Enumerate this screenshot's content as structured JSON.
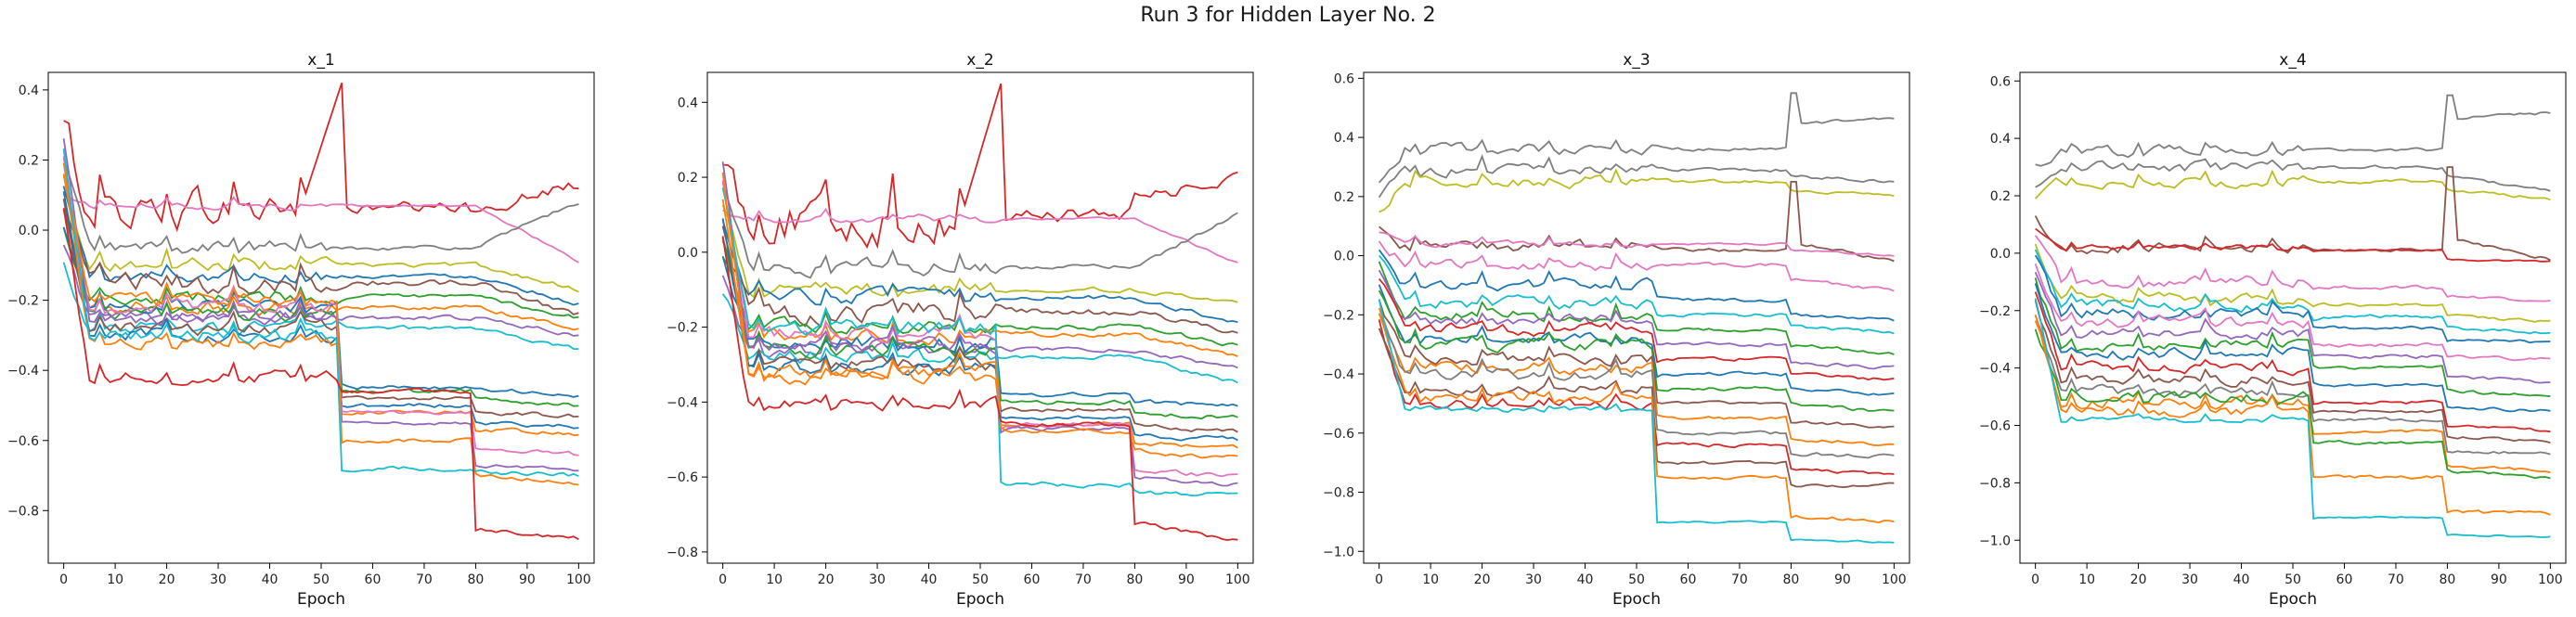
{
  "figure": {
    "title": "Run 3 for Hidden Layer No. 2"
  },
  "chart_data": [
    {
      "type": "line",
      "title": "x_1",
      "xlabel": "Epoch",
      "ylabel": "",
      "xlim": [
        -3,
        103
      ],
      "ylim": [
        -0.95,
        0.45
      ],
      "xticks": [
        0,
        10,
        20,
        30,
        40,
        50,
        60,
        70,
        80,
        90,
        100
      ],
      "yticks": [
        -0.8,
        -0.6,
        -0.4,
        -0.2,
        0.0,
        0.2,
        0.4
      ],
      "ytick_labels": [
        "−0.8",
        "−0.6",
        "−0.4",
        "−0.2",
        "0.0",
        "0.2",
        "0.4"
      ],
      "grid": false,
      "legend": "none",
      "series": [
        {
          "start": 0.3,
          "mid": 0.06,
          "drop54": 0.0,
          "drop80": 0.0,
          "final": 0.13,
          "color": "#d62728",
          "spike54": 0.42,
          "noise": 0.06
        },
        {
          "start": 0.1,
          "mid": 0.07,
          "drop54": 0.0,
          "drop80": 0.0,
          "final": -0.09,
          "color": "#e377c2",
          "noise": 0.01
        },
        {
          "start": 0.2,
          "mid": -0.05,
          "drop54": 0.0,
          "drop80": 0.0,
          "final": 0.08,
          "color": "#7f7f7f",
          "noise": 0.02
        },
        {
          "start": 0.15,
          "mid": -0.1,
          "drop54": 0.0,
          "drop80": 0.0,
          "final": -0.17,
          "color": "#bcbd22",
          "noise": 0.02
        },
        {
          "start": 0.12,
          "mid": -0.13,
          "drop54": 0.0,
          "drop80": 0.0,
          "final": -0.21,
          "color": "#1f77b4",
          "noise": 0.02
        },
        {
          "start": 0.05,
          "mid": -0.15,
          "drop54": 0.0,
          "drop80": 0.0,
          "final": -0.24,
          "color": "#8c564b",
          "noise": 0.03
        },
        {
          "start": 0.0,
          "mid": -0.19,
          "drop54": 0.0,
          "drop80": 0.0,
          "final": -0.25,
          "color": "#2ca02c",
          "noise": 0.02
        },
        {
          "start": 0.05,
          "mid": -0.22,
          "drop54": 0.0,
          "drop80": 0.0,
          "final": -0.28,
          "color": "#ff7f0e",
          "noise": 0.02
        },
        {
          "start": -0.05,
          "mid": -0.25,
          "drop54": 0.0,
          "drop80": 0.0,
          "final": -0.3,
          "color": "#9467bd",
          "noise": 0.02
        },
        {
          "start": -0.1,
          "mid": -0.28,
          "drop54": 0.0,
          "drop80": 0.0,
          "final": -0.34,
          "color": "#17becf",
          "noise": 0.02
        },
        {
          "start": 0.0,
          "mid": -0.22,
          "drop54": -0.45,
          "drop80": -0.45,
          "final": -0.47,
          "color": "#1f77b4",
          "noise": 0.02
        },
        {
          "start": 0.05,
          "mid": -0.24,
          "drop54": -0.46,
          "drop80": -0.48,
          "final": -0.5,
          "color": "#2ca02c",
          "noise": 0.02
        },
        {
          "start": 0.08,
          "mid": -0.28,
          "drop54": -0.48,
          "drop80": -0.52,
          "final": -0.53,
          "color": "#8c564b",
          "noise": 0.02
        },
        {
          "start": 0.1,
          "mid": -0.3,
          "drop54": -0.5,
          "drop80": -0.55,
          "final": -0.56,
          "color": "#1f77b4",
          "noise": 0.02
        },
        {
          "start": 0.15,
          "mid": -0.32,
          "drop54": -0.52,
          "drop80": -0.57,
          "final": -0.58,
          "color": "#ff7f0e",
          "noise": 0.02
        },
        {
          "start": 0.2,
          "mid": -0.22,
          "drop54": -0.52,
          "drop80": -0.62,
          "final": -0.64,
          "color": "#e377c2",
          "noise": 0.02
        },
        {
          "start": 0.25,
          "mid": -0.25,
          "drop54": -0.55,
          "drop80": -0.67,
          "final": -0.68,
          "color": "#9467bd",
          "noise": 0.02
        },
        {
          "start": 0.18,
          "mid": -0.2,
          "drop54": -0.6,
          "drop80": -0.7,
          "final": -0.72,
          "color": "#ff7f0e",
          "noise": 0.02
        },
        {
          "start": 0.22,
          "mid": -0.3,
          "drop54": -0.68,
          "drop80": -0.69,
          "final": -0.7,
          "color": "#17becf",
          "noise": 0.02
        },
        {
          "start": 0.05,
          "mid": -0.42,
          "drop54": -0.46,
          "drop80": -0.85,
          "final": -0.88,
          "color": "#d62728",
          "noise": 0.02
        }
      ]
    },
    {
      "type": "line",
      "title": "x_2",
      "xlabel": "Epoch",
      "ylabel": "",
      "xlim": [
        -3,
        103
      ],
      "ylim": [
        -0.83,
        0.48
      ],
      "xticks": [
        0,
        10,
        20,
        30,
        40,
        50,
        60,
        70,
        80,
        90,
        100
      ],
      "yticks": [
        -0.8,
        -0.6,
        -0.4,
        -0.2,
        0.0,
        0.2,
        0.4
      ],
      "ytick_labels": [
        "−0.8",
        "−0.6",
        "−0.4",
        "−0.2",
        "0.0",
        "0.2",
        "0.4"
      ],
      "grid": false,
      "legend": "none",
      "series": [
        {
          "start": 0.28,
          "mid": 0.08,
          "drop54": 0.1,
          "drop80": 0.15,
          "final": 0.19,
          "color": "#d62728",
          "spike54": 0.45,
          "noise": 0.06
        },
        {
          "start": 0.12,
          "mid": 0.09,
          "drop54": 0.0,
          "drop80": 0.0,
          "final": -0.03,
          "color": "#e377c2",
          "noise": 0.01
        },
        {
          "start": 0.2,
          "mid": -0.04,
          "drop54": 0.0,
          "drop80": 0.0,
          "final": 0.1,
          "color": "#7f7f7f",
          "noise": 0.02
        },
        {
          "start": 0.14,
          "mid": -0.1,
          "drop54": 0.0,
          "drop80": 0.0,
          "final": -0.14,
          "color": "#bcbd22",
          "noise": 0.02
        },
        {
          "start": 0.1,
          "mid": -0.12,
          "drop54": 0.0,
          "drop80": 0.0,
          "final": -0.19,
          "color": "#1f77b4",
          "noise": 0.02
        },
        {
          "start": 0.05,
          "mid": -0.16,
          "drop54": 0.0,
          "drop80": 0.0,
          "final": -0.22,
          "color": "#8c564b",
          "noise": 0.03
        },
        {
          "start": 0.0,
          "mid": -0.2,
          "drop54": 0.0,
          "drop80": 0.0,
          "final": -0.25,
          "color": "#2ca02c",
          "noise": 0.02
        },
        {
          "start": 0.05,
          "mid": -0.22,
          "drop54": 0.0,
          "drop80": 0.0,
          "final": -0.28,
          "color": "#ff7f0e",
          "noise": 0.02
        },
        {
          "start": -0.05,
          "mid": -0.26,
          "drop54": 0.0,
          "drop80": 0.0,
          "final": -0.31,
          "color": "#9467bd",
          "noise": 0.02
        },
        {
          "start": -0.1,
          "mid": -0.28,
          "drop54": 0.0,
          "drop80": 0.0,
          "final": -0.35,
          "color": "#17becf",
          "noise": 0.02
        },
        {
          "start": 0.0,
          "mid": -0.24,
          "drop54": -0.38,
          "drop80": -0.4,
          "final": -0.41,
          "color": "#1f77b4",
          "noise": 0.02
        },
        {
          "start": 0.05,
          "mid": -0.26,
          "drop54": -0.4,
          "drop80": -0.43,
          "final": -0.44,
          "color": "#2ca02c",
          "noise": 0.02
        },
        {
          "start": 0.08,
          "mid": -0.3,
          "drop54": -0.42,
          "drop80": -0.46,
          "final": -0.48,
          "color": "#8c564b",
          "noise": 0.02
        },
        {
          "start": 0.1,
          "mid": -0.31,
          "drop54": -0.44,
          "drop80": -0.49,
          "final": -0.5,
          "color": "#1f77b4",
          "noise": 0.02
        },
        {
          "start": 0.15,
          "mid": -0.33,
          "drop54": -0.46,
          "drop80": -0.51,
          "final": -0.52,
          "color": "#ff7f0e",
          "noise": 0.02
        },
        {
          "start": 0.2,
          "mid": -0.22,
          "drop54": -0.46,
          "drop80": -0.58,
          "final": -0.6,
          "color": "#e377c2",
          "noise": 0.02
        },
        {
          "start": 0.25,
          "mid": -0.25,
          "drop54": -0.47,
          "drop80": -0.6,
          "final": -0.62,
          "color": "#9467bd",
          "noise": 0.02
        },
        {
          "start": 0.18,
          "mid": -0.2,
          "drop54": -0.62,
          "drop80": -0.64,
          "final": -0.65,
          "color": "#17becf",
          "noise": 0.02
        },
        {
          "start": 0.22,
          "mid": -0.32,
          "drop54": -0.48,
          "drop80": -0.53,
          "final": -0.55,
          "color": "#ff7f0e",
          "noise": 0.02
        },
        {
          "start": 0.05,
          "mid": -0.4,
          "drop54": -0.46,
          "drop80": -0.72,
          "final": -0.77,
          "color": "#d62728",
          "noise": 0.02
        }
      ]
    },
    {
      "type": "line",
      "title": "x_3",
      "xlabel": "Epoch",
      "ylabel": "",
      "xlim": [
        -3,
        103
      ],
      "ylim": [
        -1.04,
        0.62
      ],
      "xticks": [
        0,
        10,
        20,
        30,
        40,
        50,
        60,
        70,
        80,
        90,
        100
      ],
      "yticks": [
        -1.0,
        -0.8,
        -0.6,
        -0.4,
        -0.2,
        0.0,
        0.2,
        0.4,
        0.6
      ],
      "ytick_labels": [
        "−1.0",
        "−0.8",
        "−0.6",
        "−0.4",
        "−0.2",
        "0.0",
        "0.2",
        "0.4",
        "0.6"
      ],
      "grid": false,
      "legend": "none",
      "series": [
        {
          "start": 0.25,
          "mid": 0.36,
          "drop54": 0.36,
          "drop80": 0.45,
          "final": 0.46,
          "color": "#7f7f7f",
          "spike80": 0.55,
          "noise": 0.02
        },
        {
          "start": 0.2,
          "mid": 0.29,
          "drop54": 0.29,
          "drop80": 0.27,
          "final": 0.25,
          "color": "#7f7f7f",
          "noise": 0.02
        },
        {
          "start": 0.15,
          "mid": 0.25,
          "drop54": 0.25,
          "drop80": 0.22,
          "final": 0.2,
          "color": "#bcbd22",
          "noise": 0.02
        },
        {
          "start": 0.1,
          "mid": 0.03,
          "drop54": 0.02,
          "drop80": 0.05,
          "final": -0.02,
          "color": "#8c564b",
          "spike80": 0.25,
          "noise": 0.02
        },
        {
          "start": 0.08,
          "mid": 0.04,
          "drop54": 0.04,
          "drop80": 0.02,
          "final": 0.0,
          "color": "#e377c2",
          "noise": 0.01
        },
        {
          "start": 0.05,
          "mid": -0.03,
          "drop54": -0.03,
          "drop80": -0.08,
          "final": -0.12,
          "color": "#e377c2",
          "noise": 0.02
        },
        {
          "start": 0.02,
          "mid": -0.1,
          "drop54": -0.15,
          "drop80": -0.2,
          "final": -0.22,
          "color": "#1f77b4",
          "noise": 0.02
        },
        {
          "start": 0.0,
          "mid": -0.16,
          "drop54": -0.2,
          "drop80": -0.24,
          "final": -0.26,
          "color": "#17becf",
          "noise": 0.02
        },
        {
          "start": -0.02,
          "mid": -0.2,
          "drop54": -0.25,
          "drop80": -0.3,
          "final": -0.33,
          "color": "#2ca02c",
          "noise": 0.02
        },
        {
          "start": -0.05,
          "mid": -0.22,
          "drop54": -0.3,
          "drop80": -0.36,
          "final": -0.38,
          "color": "#9467bd",
          "noise": 0.02
        },
        {
          "start": -0.08,
          "mid": -0.25,
          "drop54": -0.35,
          "drop80": -0.4,
          "final": -0.42,
          "color": "#d62728",
          "noise": 0.02
        },
        {
          "start": -0.1,
          "mid": -0.28,
          "drop54": -0.4,
          "drop80": -0.45,
          "final": -0.47,
          "color": "#1f77b4",
          "noise": 0.02
        },
        {
          "start": -0.12,
          "mid": -0.3,
          "drop54": -0.45,
          "drop80": -0.5,
          "final": -0.53,
          "color": "#2ca02c",
          "noise": 0.02
        },
        {
          "start": -0.15,
          "mid": -0.35,
          "drop54": -0.5,
          "drop80": -0.56,
          "final": -0.58,
          "color": "#8c564b",
          "noise": 0.02
        },
        {
          "start": -0.18,
          "mid": -0.38,
          "drop54": -0.55,
          "drop80": -0.62,
          "final": -0.64,
          "color": "#ff7f0e",
          "noise": 0.02
        },
        {
          "start": -0.2,
          "mid": -0.4,
          "drop54": -0.6,
          "drop80": -0.67,
          "final": -0.68,
          "color": "#7f7f7f",
          "noise": 0.02
        },
        {
          "start": -0.22,
          "mid": -0.5,
          "drop54": -0.64,
          "drop80": -0.72,
          "final": -0.74,
          "color": "#d62728",
          "noise": 0.02
        },
        {
          "start": -0.25,
          "mid": -0.45,
          "drop54": -0.7,
          "drop80": -0.78,
          "final": -0.77,
          "color": "#8c564b",
          "noise": 0.02
        },
        {
          "start": -0.2,
          "mid": -0.48,
          "drop54": -0.75,
          "drop80": -0.88,
          "final": -0.9,
          "color": "#ff7f0e",
          "noise": 0.02
        },
        {
          "start": -0.15,
          "mid": -0.52,
          "drop54": -0.9,
          "drop80": -0.96,
          "final": -0.97,
          "color": "#17becf",
          "noise": 0.01
        }
      ]
    },
    {
      "type": "line",
      "title": "x_4",
      "xlabel": "Epoch",
      "ylabel": "",
      "xlim": [
        -3,
        103
      ],
      "ylim": [
        -1.08,
        0.63
      ],
      "xticks": [
        0,
        10,
        20,
        30,
        40,
        50,
        60,
        70,
        80,
        90,
        100
      ],
      "yticks": [
        -1.0,
        -0.8,
        -0.6,
        -0.4,
        -0.2,
        0.0,
        0.2,
        0.4,
        0.6
      ],
      "ytick_labels": [
        "−1.0",
        "−0.8",
        "−0.6",
        "−0.4",
        "−0.2",
        "0.0",
        "0.2",
        "0.4",
        "0.6"
      ],
      "grid": false,
      "legend": "none",
      "series": [
        {
          "start": 0.3,
          "mid": 0.36,
          "drop54": 0.36,
          "drop80": 0.47,
          "final": 0.49,
          "color": "#7f7f7f",
          "spike80": 0.55,
          "noise": 0.02
        },
        {
          "start": 0.22,
          "mid": 0.3,
          "drop54": 0.3,
          "drop80": 0.27,
          "final": 0.22,
          "color": "#7f7f7f",
          "noise": 0.02
        },
        {
          "start": 0.18,
          "mid": 0.25,
          "drop54": 0.25,
          "drop80": 0.22,
          "final": 0.19,
          "color": "#bcbd22",
          "noise": 0.02
        },
        {
          "start": 0.12,
          "mid": 0.02,
          "drop54": 0.01,
          "drop80": 0.05,
          "final": -0.02,
          "color": "#8c564b",
          "spike80": 0.3,
          "noise": 0.02
        },
        {
          "start": 0.08,
          "mid": 0.02,
          "drop54": 0.01,
          "drop80": -0.02,
          "final": -0.03,
          "color": "#d62728",
          "noise": 0.01
        },
        {
          "start": 0.05,
          "mid": -0.1,
          "drop54": -0.12,
          "drop80": -0.15,
          "final": -0.17,
          "color": "#e377c2",
          "noise": 0.02
        },
        {
          "start": 0.02,
          "mid": -0.16,
          "drop54": -0.18,
          "drop80": -0.22,
          "final": -0.24,
          "color": "#bcbd22",
          "noise": 0.02
        },
        {
          "start": 0.0,
          "mid": -0.18,
          "drop54": -0.22,
          "drop80": -0.26,
          "final": -0.28,
          "color": "#17becf",
          "noise": 0.02
        },
        {
          "start": -0.02,
          "mid": -0.21,
          "drop54": -0.26,
          "drop80": -0.3,
          "final": -0.31,
          "color": "#1f77b4",
          "noise": 0.02
        },
        {
          "start": -0.05,
          "mid": -0.24,
          "drop54": -0.32,
          "drop80": -0.36,
          "final": -0.37,
          "color": "#e377c2",
          "noise": 0.02
        },
        {
          "start": -0.08,
          "mid": -0.28,
          "drop54": -0.36,
          "drop80": -0.43,
          "final": -0.45,
          "color": "#9467bd",
          "noise": 0.02
        },
        {
          "start": -0.1,
          "mid": -0.32,
          "drop54": -0.4,
          "drop80": -0.48,
          "final": -0.5,
          "color": "#2ca02c",
          "noise": 0.02
        },
        {
          "start": -0.12,
          "mid": -0.35,
          "drop54": -0.46,
          "drop80": -0.54,
          "final": -0.55,
          "color": "#1f77b4",
          "noise": 0.02
        },
        {
          "start": -0.15,
          "mid": -0.4,
          "drop54": -0.52,
          "drop80": -0.6,
          "final": -0.62,
          "color": "#d62728",
          "noise": 0.02
        },
        {
          "start": -0.18,
          "mid": -0.44,
          "drop54": -0.55,
          "drop80": -0.64,
          "final": -0.66,
          "color": "#8c564b",
          "noise": 0.02
        },
        {
          "start": -0.2,
          "mid": -0.48,
          "drop54": -0.58,
          "drop80": -0.69,
          "final": -0.7,
          "color": "#7f7f7f",
          "noise": 0.02
        },
        {
          "start": -0.22,
          "mid": -0.52,
          "drop54": -0.62,
          "drop80": -0.74,
          "final": -0.76,
          "color": "#ff7f0e",
          "noise": 0.02
        },
        {
          "start": -0.25,
          "mid": -0.5,
          "drop54": -0.66,
          "drop80": -0.76,
          "final": -0.78,
          "color": "#2ca02c",
          "noise": 0.02
        },
        {
          "start": -0.2,
          "mid": -0.55,
          "drop54": -0.78,
          "drop80": -0.9,
          "final": -0.91,
          "color": "#ff7f0e",
          "noise": 0.02
        },
        {
          "start": -0.15,
          "mid": -0.58,
          "drop54": -0.92,
          "drop80": -0.98,
          "final": -0.99,
          "color": "#17becf",
          "noise": 0.01
        }
      ]
    }
  ]
}
